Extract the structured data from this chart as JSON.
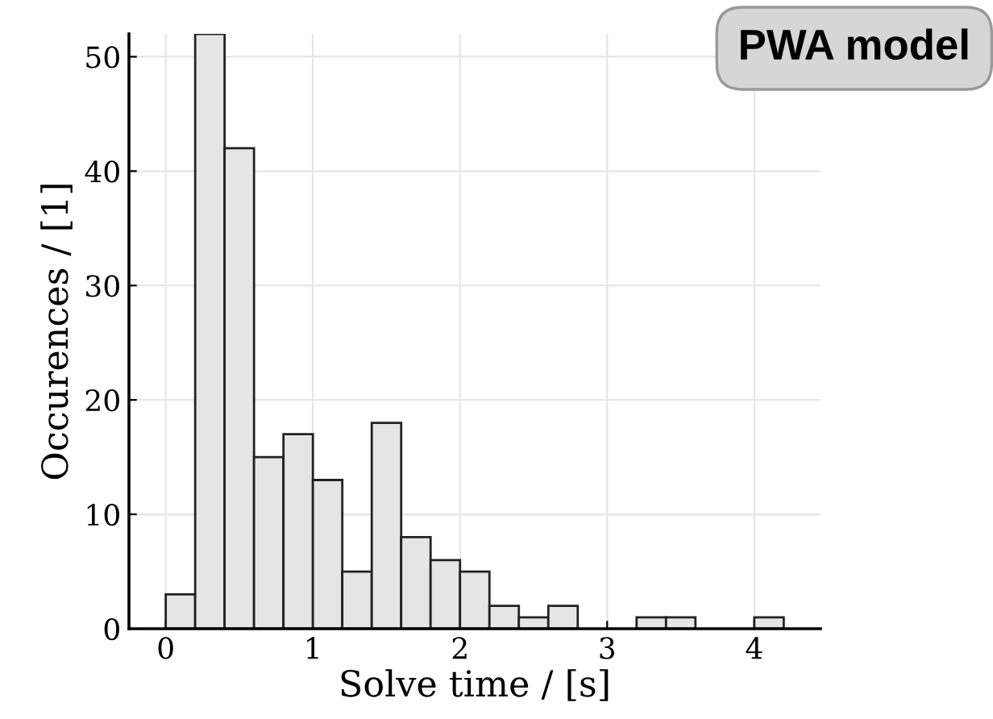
{
  "chart_data": {
    "type": "histogram",
    "xlabel": "Solve time / [s]",
    "ylabel": "Occurences / [1]",
    "annotations": [
      "PWA model"
    ],
    "bins": [
      0,
      0.2,
      0.4,
      0.6,
      0.8,
      1.0,
      1.2,
      1.4,
      1.6,
      1.8,
      2.0,
      2.2,
      2.4,
      2.6,
      2.8,
      3.0,
      3.2,
      3.4,
      3.6,
      3.8,
      4.0,
      4.2
    ],
    "values": [
      3,
      52,
      42,
      15,
      17,
      13,
      5,
      18,
      8,
      6,
      5,
      2,
      1,
      2,
      0,
      0,
      1,
      1,
      0,
      0,
      1
    ],
    "color": "#e5e5e5",
    "xlim": [
      -0.25,
      4.45
    ],
    "ylim": [
      0,
      52
    ],
    "xticks": [
      0,
      1,
      2,
      3,
      4
    ],
    "yticks": [
      0,
      10,
      20,
      30,
      40,
      50
    ],
    "grid": true
  }
}
